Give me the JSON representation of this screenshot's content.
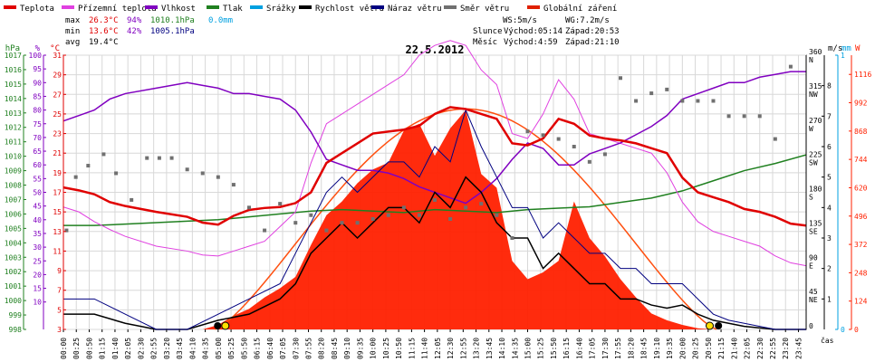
{
  "legend": [
    {
      "name": "Teplota",
      "color": "#e00000"
    },
    {
      "name": "Přízemní teplota",
      "color": "#e040e0"
    },
    {
      "name": "Vlhkost",
      "color": "#8000c0"
    },
    {
      "name": "Tlak",
      "color": "#208020"
    },
    {
      "name": "Srážky",
      "color": "#00a0e0"
    },
    {
      "name": "Rychlost větru",
      "color": "#000000"
    },
    {
      "name": "Náraz větru",
      "color": "#000080"
    },
    {
      "name": "Směr větru",
      "color": "#707070"
    },
    {
      "name": "Globální záření",
      "color": "#e02000"
    }
  ],
  "stats": {
    "max": {
      "label": "max",
      "temp": "26.3°C",
      "hum": "94%",
      "press": "1010.1hPa",
      "rain": "0.0mm"
    },
    "min": {
      "label": "min",
      "temp": "13.6°C",
      "hum": "42%",
      "press": "1005.1hPa"
    },
    "avg": {
      "label": "avg",
      "temp": "19.4°C"
    }
  },
  "info": {
    "ws": "WS:5m/s",
    "wg": "WG:7.2m/s",
    "slunce": "Slunce",
    "slunce_rise": "Východ:05:14",
    "slunce_set": "Západ:20:53",
    "mesic": "Měsíc",
    "mesic_rise": "Východ:4:59",
    "mesic_set": "Západ:21:10"
  },
  "colors": {
    "temp": "#e00000",
    "ground": "#e040e0",
    "hum": "#8000c0",
    "press": "#208020",
    "rain": "#00a0e0",
    "wind": "#000000",
    "gust": "#000080",
    "dir": "#707070",
    "rad": "#ff2000",
    "radcurve": "#ff5010"
  },
  "chart_data": {
    "type": "line",
    "title": "22.5.2012",
    "xlabel": "čas",
    "axes": {
      "hPa": {
        "label": "hPa",
        "range": [
          998,
          1017
        ],
        "ticks": [
          998,
          999,
          1000,
          1001,
          1002,
          1003,
          1004,
          1005,
          1006,
          1007,
          1008,
          1009,
          1010,
          1011,
          1012,
          1013,
          1014,
          1015,
          1016,
          1017
        ]
      },
      "percent": {
        "label": "%",
        "range": [
          0,
          100
        ],
        "ticks": [
          10,
          15,
          20,
          25,
          30,
          35,
          40,
          45,
          50,
          55,
          60,
          65,
          70,
          75,
          80,
          85,
          90,
          95,
          100
        ]
      },
      "celsius": {
        "label": "°C",
        "range": [
          3,
          31
        ],
        "ticks": [
          3,
          5,
          7,
          9,
          11,
          13,
          15,
          17,
          19,
          21,
          23,
          25,
          27,
          29,
          31
        ]
      },
      "ms": {
        "label": "m/s",
        "range": [
          0,
          9
        ],
        "ticks": [
          1,
          2,
          3,
          4,
          5,
          6,
          7,
          8
        ]
      },
      "direction": {
        "label": "",
        "range": [
          0,
          360
        ],
        "ticks": [
          {
            "v": 0,
            "l": "0"
          },
          {
            "v": 45,
            "l": "45 NE"
          },
          {
            "v": 90,
            "l": "90 E"
          },
          {
            "v": 135,
            "l": "135 SE"
          },
          {
            "v": 180,
            "l": "180 S"
          },
          {
            "v": 225,
            "l": "225 SW"
          },
          {
            "v": 270,
            "l": "270 W"
          },
          {
            "v": 315,
            "l": "315 NW"
          },
          {
            "v": 360,
            "l": "360 N"
          }
        ]
      },
      "mm": {
        "label": "mm",
        "range": [
          0,
          1
        ],
        "ticks": [
          0,
          1
        ]
      },
      "wm2": {
        "label": "W",
        "range": [
          0,
          1200
        ],
        "ticks": [
          0,
          124,
          248,
          372,
          496,
          620,
          744,
          868,
          992,
          1116
        ]
      }
    },
    "time_ticks": [
      "00:00",
      "00:25",
      "00:50",
      "01:15",
      "01:40",
      "02:05",
      "02:30",
      "02:55",
      "03:20",
      "03:45",
      "04:10",
      "04:35",
      "05:00",
      "05:25",
      "05:50",
      "06:15",
      "06:40",
      "07:05",
      "07:30",
      "07:55",
      "08:20",
      "08:45",
      "09:10",
      "09:35",
      "10:00",
      "10:25",
      "10:50",
      "11:15",
      "11:40",
      "12:05",
      "12:30",
      "12:55",
      "13:20",
      "13:45",
      "14:10",
      "14:35",
      "15:00",
      "15:25",
      "15:50",
      "16:15",
      "16:40",
      "17:05",
      "17:30",
      "17:55",
      "18:20",
      "18:45",
      "19:10",
      "19:35",
      "20:00",
      "20:25",
      "20:50",
      "21:15",
      "21:40",
      "22:05",
      "22:30",
      "22:55",
      "23:20",
      "23:45"
    ],
    "series": [
      {
        "name": "Teplota",
        "axis": "celsius",
        "x": [
          0,
          0.5,
          1,
          1.5,
          2,
          3,
          4,
          4.5,
          5,
          5.5,
          6,
          6.5,
          7,
          7.5,
          8,
          8.5,
          9,
          9.5,
          10,
          10.5,
          11,
          11.5,
          12,
          12.5,
          13,
          13.5,
          14,
          14.5,
          15,
          15.5,
          16,
          16.5,
          17,
          17.5,
          18,
          18.5,
          19,
          19.5,
          20,
          20.5,
          21,
          21.5,
          22,
          22.5,
          23,
          23.5,
          24
        ],
        "values": [
          17.5,
          17.2,
          16.8,
          16.0,
          15.6,
          15.0,
          14.5,
          13.9,
          13.7,
          14.6,
          15.2,
          15.4,
          15.5,
          15.9,
          17.0,
          20.0,
          21.0,
          22.0,
          23.0,
          23.2,
          23.4,
          23.8,
          25.0,
          25.7,
          25.5,
          25.0,
          24.5,
          22.0,
          21.8,
          22.5,
          24.5,
          24.0,
          22.8,
          22.5,
          22.3,
          22.0,
          21.5,
          21.0,
          18.5,
          17.0,
          16.5,
          16.0,
          15.3,
          15.0,
          14.5,
          13.8,
          13.6
        ]
      },
      {
        "name": "Přízemní teplota",
        "axis": "celsius",
        "x": [
          0,
          0.5,
          1,
          1.5,
          2,
          3,
          4,
          4.5,
          5,
          5.5,
          6,
          6.5,
          7,
          7.5,
          8,
          8.5,
          9,
          9.5,
          10,
          10.5,
          11,
          11.5,
          12,
          12.5,
          13,
          13.5,
          14,
          14.5,
          15,
          15.5,
          16,
          16.5,
          17,
          17.5,
          18,
          18.5,
          19,
          19.5,
          20,
          20.5,
          21,
          21.5,
          22,
          22.5,
          23,
          23.5,
          24
        ],
        "values": [
          15.5,
          15.0,
          14.0,
          13.2,
          12.5,
          11.5,
          11.0,
          10.6,
          10.5,
          11.0,
          11.5,
          12.0,
          13.5,
          15.0,
          20.0,
          24.0,
          25.0,
          26.0,
          27.0,
          28.0,
          29.0,
          31.0,
          32.0,
          32.5,
          32.0,
          29.5,
          28.0,
          23.0,
          22.5,
          25.0,
          28.5,
          26.5,
          23.0,
          22.5,
          22.0,
          21.5,
          21.0,
          19.0,
          16.0,
          14.0,
          13.0,
          12.5,
          12.0,
          11.5,
          10.5,
          9.8,
          9.5
        ]
      },
      {
        "name": "Vlhkost",
        "axis": "percent",
        "x": [
          0,
          0.5,
          1,
          1.5,
          2,
          3,
          4,
          4.5,
          5,
          5.5,
          6,
          6.5,
          7,
          7.5,
          8,
          8.5,
          9,
          9.5,
          10,
          10.5,
          11,
          11.5,
          12,
          12.5,
          13,
          13.5,
          14,
          14.5,
          15,
          15.5,
          16,
          16.5,
          17,
          17.5,
          18,
          18.5,
          19,
          19.5,
          20,
          20.5,
          21,
          21.5,
          22,
          22.5,
          23,
          23.5,
          24
        ],
        "values": [
          76,
          78,
          80,
          84,
          86,
          88,
          90,
          89,
          88,
          86,
          86,
          85,
          84,
          80,
          72,
          62,
          60,
          58,
          58,
          57,
          55,
          52,
          50,
          48,
          46,
          50,
          55,
          62,
          68,
          66,
          60,
          60,
          64,
          66,
          68,
          71,
          74,
          78,
          84,
          86,
          88,
          90,
          90,
          92,
          93,
          94,
          94
        ]
      },
      {
        "name": "Tlak",
        "axis": "hPa",
        "x": [
          0,
          1,
          2,
          3,
          4,
          5,
          6,
          7,
          8,
          9,
          10,
          11,
          12,
          13,
          14,
          15,
          16,
          17,
          18,
          19,
          20,
          21,
          22,
          23,
          24
        ],
        "values": [
          1005.2,
          1005.2,
          1005.3,
          1005.4,
          1005.5,
          1005.6,
          1005.8,
          1006.0,
          1006.2,
          1006.3,
          1006.2,
          1006.1,
          1006.3,
          1006.2,
          1006.1,
          1006.3,
          1006.4,
          1006.5,
          1006.8,
          1007.1,
          1007.6,
          1008.3,
          1009.0,
          1009.5,
          1010.1
        ]
      },
      {
        "name": "Rychlost větru",
        "axis": "ms",
        "x": [
          0,
          1,
          2,
          3,
          4,
          5,
          6,
          7,
          7.5,
          8,
          8.5,
          9,
          9.5,
          10,
          10.5,
          11,
          11.5,
          12,
          12.5,
          13,
          13.5,
          14,
          14.5,
          15,
          15.5,
          16,
          16.5,
          17,
          17.5,
          18,
          18.5,
          19,
          19.5,
          20,
          20.5,
          21,
          21.5,
          22,
          23,
          24
        ],
        "values": [
          0.5,
          0.5,
          0.2,
          0,
          0,
          0.3,
          0.5,
          1.0,
          1.5,
          2.5,
          3.0,
          3.5,
          3.0,
          3.5,
          4.0,
          4.0,
          3.5,
          4.5,
          4.0,
          5.0,
          4.5,
          3.5,
          3.0,
          3.0,
          2.0,
          2.5,
          2.0,
          1.5,
          1.5,
          1.0,
          1.0,
          0.8,
          0.7,
          0.8,
          0.5,
          0.3,
          0.2,
          0.1,
          0,
          0
        ]
      },
      {
        "name": "Náraz větru",
        "axis": "ms",
        "x": [
          0,
          1,
          2,
          3,
          4,
          5,
          6,
          7,
          7.5,
          8,
          8.5,
          9,
          9.5,
          10,
          10.5,
          11,
          11.5,
          12,
          12.5,
          13,
          13.5,
          14,
          14.5,
          15,
          15.5,
          16,
          16.5,
          17,
          17.5,
          18,
          18.5,
          19,
          19.5,
          20,
          20.5,
          21,
          21.5,
          22,
          23,
          24
        ],
        "values": [
          1.0,
          1.0,
          0.5,
          0,
          0,
          0.5,
          1.0,
          1.5,
          2.5,
          3.5,
          4.5,
          5.0,
          4.5,
          5.0,
          5.5,
          5.5,
          5.0,
          6.0,
          5.5,
          7.2,
          6.0,
          5.0,
          4.0,
          4.0,
          3.0,
          3.5,
          3.0,
          2.5,
          2.5,
          2.0,
          2.0,
          1.5,
          1.5,
          1.5,
          1.0,
          0.5,
          0.3,
          0.2,
          0,
          0
        ]
      },
      {
        "name": "Směr větru",
        "axis": "direction",
        "x": [
          0.1,
          0.4,
          0.8,
          1.3,
          1.7,
          2.2,
          2.7,
          3.1,
          3.5,
          4.0,
          4.5,
          5.0,
          5.5,
          6.0,
          6.5,
          7.0,
          7.5,
          8.0,
          8.5,
          9.0,
          9.5,
          10.0,
          10.5,
          11.0,
          11.5,
          12.0,
          12.5,
          13.0,
          13.5,
          14.0,
          14.5,
          15.0,
          15.5,
          16.0,
          16.5,
          17.0,
          17.5,
          18.0,
          18.5,
          19.0,
          19.5,
          20.0,
          20.5,
          21.0,
          21.5,
          22.0,
          22.5,
          23.0,
          23.5
        ],
        "values": [
          130,
          200,
          215,
          230,
          205,
          170,
          225,
          225,
          225,
          210,
          205,
          200,
          190,
          160,
          130,
          165,
          140,
          150,
          130,
          140,
          140,
          145,
          150,
          160,
          150,
          170,
          145,
          160,
          165,
          150,
          120,
          260,
          255,
          250,
          240,
          220,
          230,
          330,
          300,
          310,
          315,
          300,
          300,
          300,
          280,
          280,
          280,
          250,
          345
        ]
      },
      {
        "name": "Globální záření",
        "axis": "wm2",
        "x": [
          4.5,
          5,
          5.5,
          6,
          6.5,
          7,
          7.5,
          8,
          8.5,
          9,
          9.5,
          10,
          10.5,
          11,
          11.5,
          12,
          12.5,
          13,
          13.5,
          14,
          14.5,
          15,
          15.5,
          16,
          16.5,
          17,
          17.5,
          18,
          18.5,
          19,
          19.5,
          20,
          20.5,
          21
        ],
        "values": [
          0,
          20,
          60,
          90,
          140,
          180,
          230,
          370,
          500,
          560,
          640,
          700,
          730,
          870,
          900,
          760,
          880,
          960,
          680,
          620,
          300,
          220,
          250,
          300,
          560,
          400,
          320,
          220,
          140,
          70,
          40,
          20,
          5,
          0
        ]
      }
    ]
  }
}
